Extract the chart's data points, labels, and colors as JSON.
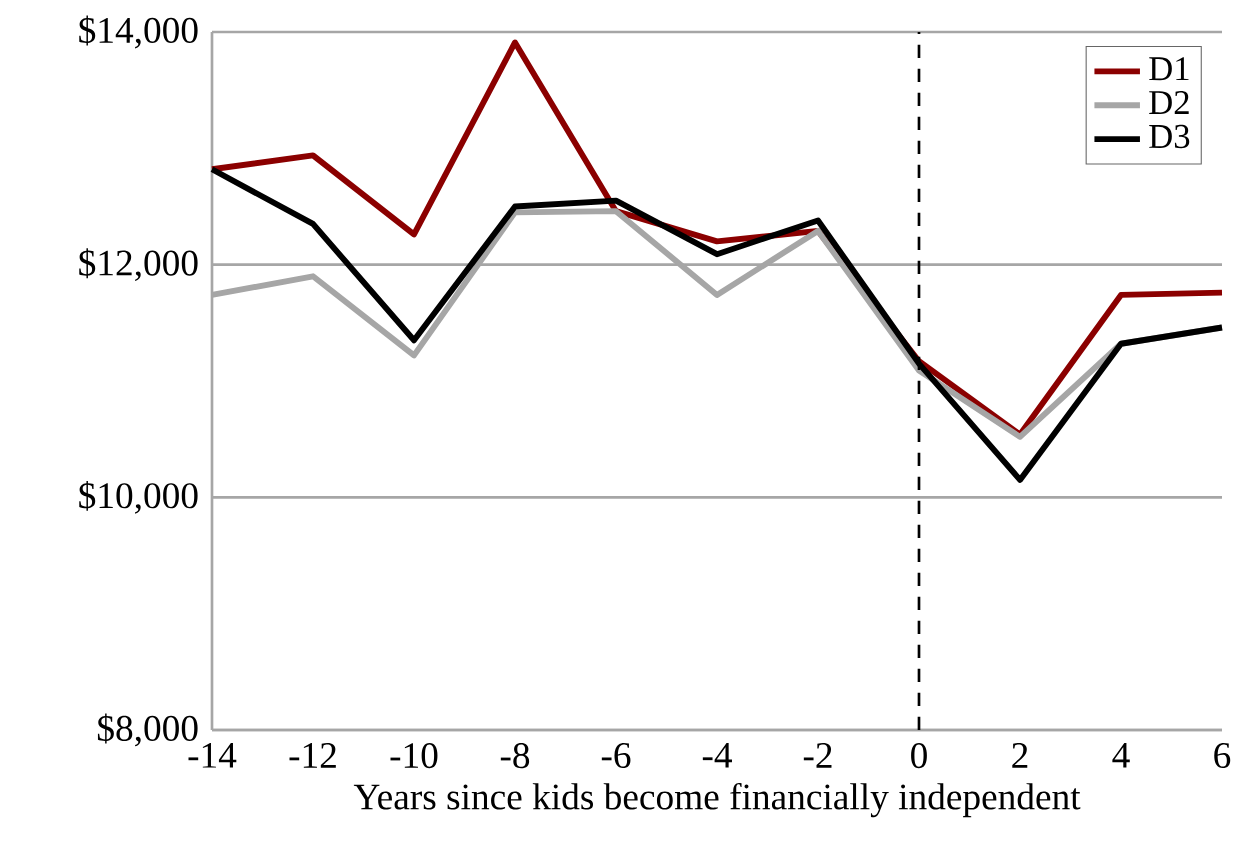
{
  "chart_data": {
    "type": "line",
    "xlabel": "Years since kids become financially independent",
    "x": [
      -14,
      -12,
      -10,
      -8,
      -6,
      -4,
      -2,
      0,
      2,
      4,
      6
    ],
    "series": [
      {
        "name": "D1",
        "color": "#8b0000",
        "values": [
          12820,
          12940,
          12260,
          13910,
          12460,
          12200,
          12290,
          11170,
          10540,
          11740,
          11760
        ]
      },
      {
        "name": "D2",
        "color": "#a6a6a6",
        "values": [
          11740,
          11900,
          11220,
          12450,
          12460,
          11740,
          12290,
          11090,
          10520,
          11320,
          11460
        ]
      },
      {
        "name": "D3",
        "color": "#000000",
        "values": [
          12820,
          12350,
          11350,
          12500,
          12550,
          12090,
          12380,
          11150,
          10150,
          11320,
          11460
        ]
      }
    ],
    "xlim": [
      -14,
      6
    ],
    "xticks": [
      -14,
      -12,
      -10,
      -8,
      -6,
      -4,
      -2,
      0,
      2,
      4,
      6
    ],
    "ylim": [
      8000,
      14000
    ],
    "yticks": [
      {
        "value": 8000,
        "label": "$8,000"
      },
      {
        "value": 10000,
        "label": "$10,000"
      },
      {
        "value": 12000,
        "label": "$12,000"
      },
      {
        "value": 14000,
        "label": "$14,000"
      }
    ],
    "grid": "y",
    "legend": "top right",
    "line_style": "solid",
    "marker": "none",
    "ref_lines": [
      {
        "axis": "x",
        "value": 0,
        "color": "#000000",
        "line_style": "dashed"
      }
    ]
  }
}
